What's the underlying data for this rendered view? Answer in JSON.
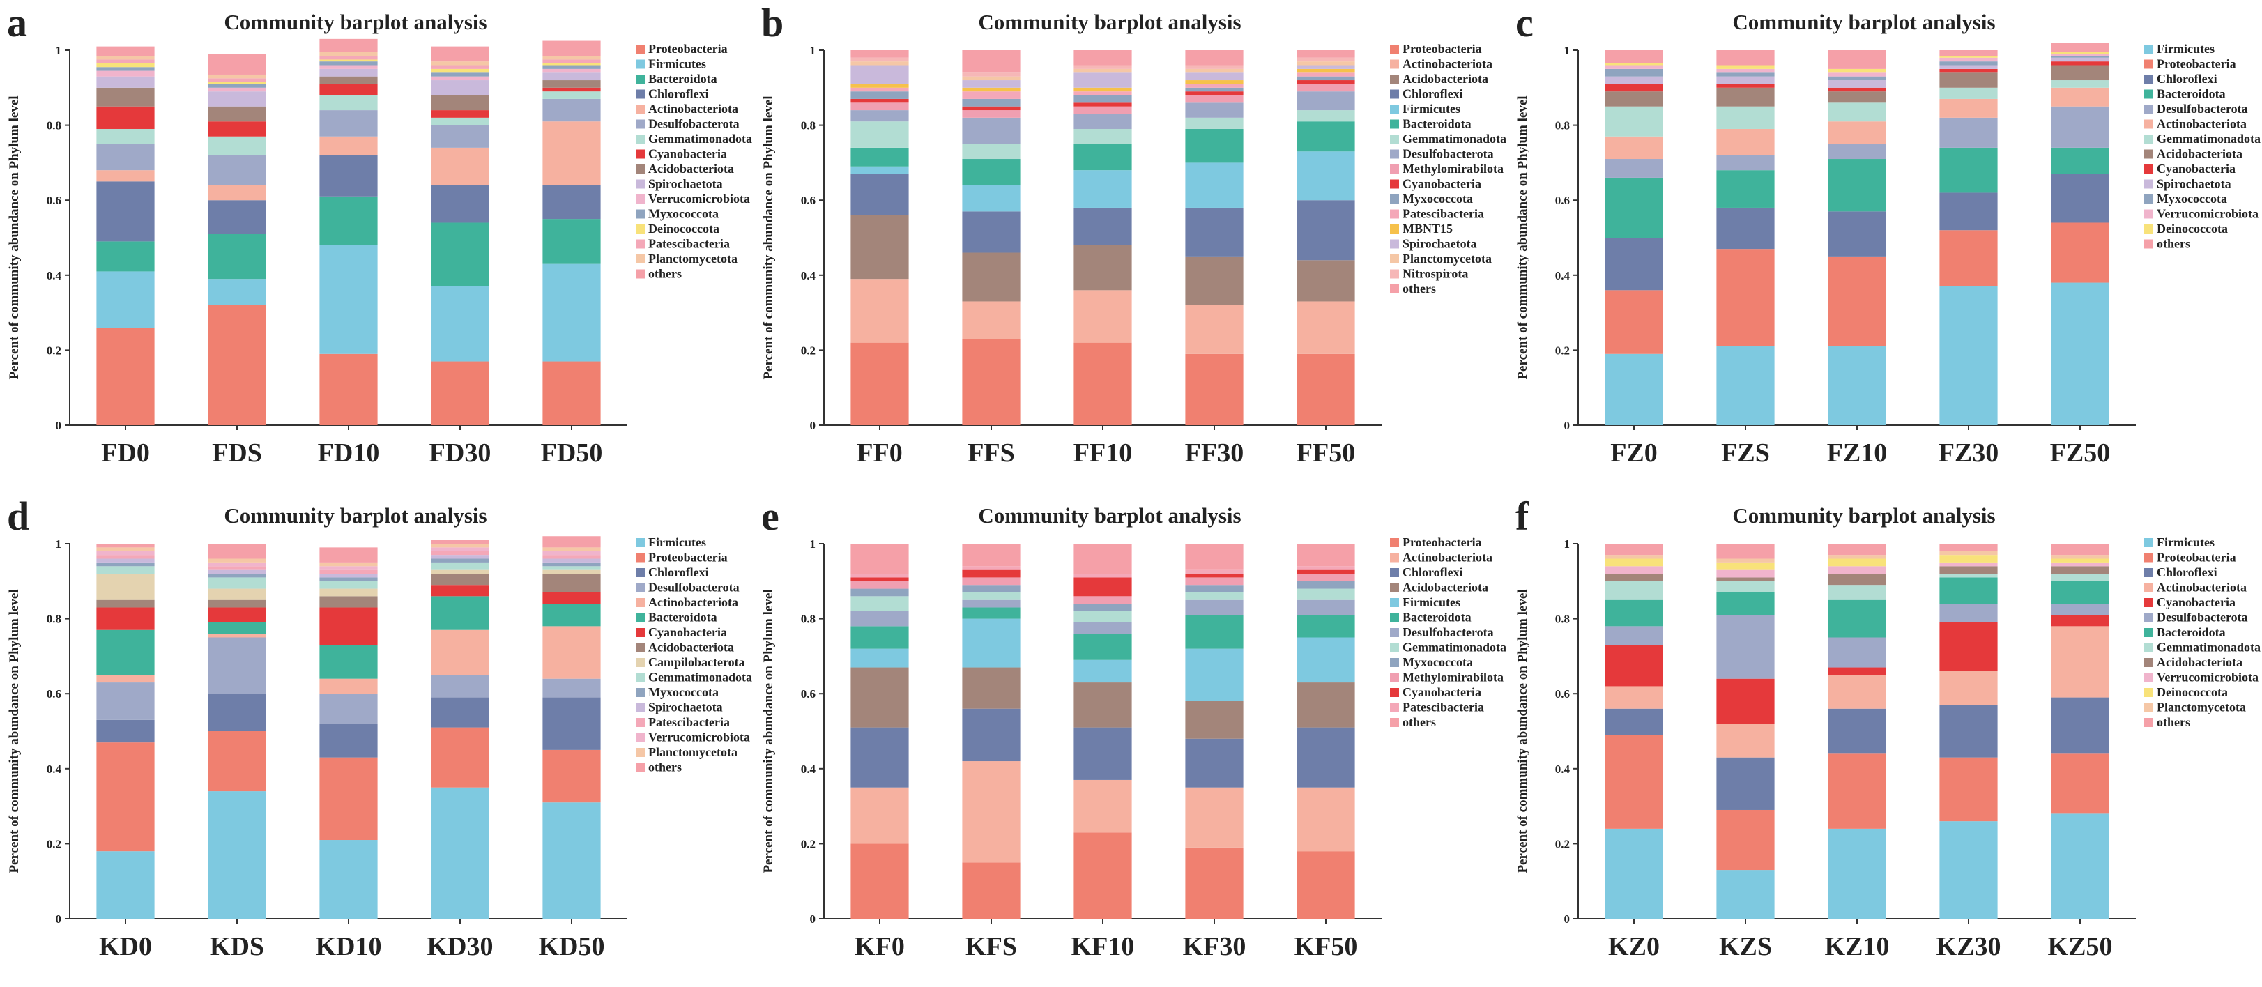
{
  "colors": {
    "Proteobacteria": "#f08070",
    "Firmicutes": "#7ec9e0",
    "Bacteroidota": "#3fb39b",
    "Chloroflexi": "#6e7ea9",
    "Actinobacteriota": "#f6b1a0",
    "Desulfobacterota": "#9fa9c8",
    "Gemmatimonadota": "#b2ddd3",
    "Cyanobacteria": "#e5393b",
    "Acidobacteriota": "#a3857a",
    "Spirochaetota": "#c9b9db",
    "Verrucomicrobiota": "#f0b4cc",
    "Myxococcota": "#8fa4bf",
    "Deinococcota": "#f8e27a",
    "Patescibacteria": "#f4a8b8",
    "Planctomycetota": "#f5c7a6",
    "others": "#f5a0a8",
    "MBNT15": "#f6c14b",
    "Methylomirabilota": "#f09fb1",
    "Nitrospirota": "#f6b7b7",
    "Campilobacterota": "#e4d3b0"
  },
  "chart_data": [
    {
      "panel_letter": "a",
      "type": "bar",
      "title": "Community barplot analysis",
      "ylabel": "Percent of community abundance on Phylum level",
      "categories": [
        "FD0",
        "FDS",
        "FD10",
        "FD30",
        "FD50"
      ],
      "ylim": [
        0,
        1
      ],
      "yticks": [
        "0",
        "0.2",
        "0.4",
        "0.6",
        "0.8",
        "1"
      ],
      "series": [
        {
          "name": "Proteobacteria",
          "values": [
            0.26,
            0.32,
            0.19,
            0.17,
            0.17
          ]
        },
        {
          "name": "Firmicutes",
          "values": [
            0.15,
            0.07,
            0.29,
            0.2,
            0.26
          ]
        },
        {
          "name": "Bacteroidota",
          "values": [
            0.08,
            0.12,
            0.13,
            0.17,
            0.12
          ]
        },
        {
          "name": "Chloroflexi",
          "values": [
            0.16,
            0.09,
            0.11,
            0.1,
            0.09
          ]
        },
        {
          "name": "Actinobacteriota",
          "values": [
            0.03,
            0.04,
            0.05,
            0.1,
            0.17
          ]
        },
        {
          "name": "Desulfobacterota",
          "values": [
            0.07,
            0.08,
            0.07,
            0.06,
            0.06
          ]
        },
        {
          "name": "Gemmatimonadota",
          "values": [
            0.04,
            0.05,
            0.04,
            0.02,
            0.02
          ]
        },
        {
          "name": "Cyanobacteria",
          "values": [
            0.06,
            0.04,
            0.03,
            0.02,
            0.01
          ]
        },
        {
          "name": "Acidobacteriota",
          "values": [
            0.05,
            0.04,
            0.02,
            0.04,
            0.02
          ]
        },
        {
          "name": "Spirochaetota",
          "values": [
            0.03,
            0.04,
            0.02,
            0.04,
            0.02
          ]
        },
        {
          "name": "Verrucomicrobiota",
          "values": [
            0.015,
            0.01,
            0.01,
            0.01,
            0.01
          ]
        },
        {
          "name": "Myxococcota",
          "values": [
            0.01,
            0.01,
            0.01,
            0.01,
            0.01
          ]
        },
        {
          "name": "Deinococcota",
          "values": [
            0.01,
            0.005,
            0.005,
            0.01,
            0.005
          ]
        },
        {
          "name": "Patescibacteria",
          "values": [
            0.01,
            0.01,
            0.01,
            0.01,
            0.01
          ]
        },
        {
          "name": "Planctomycetota",
          "values": [
            0.01,
            0.01,
            0.01,
            0.01,
            0.01
          ]
        },
        {
          "name": "others",
          "values": [
            0.025,
            0.055,
            0.035,
            0.04,
            0.04
          ]
        }
      ]
    },
    {
      "panel_letter": "b",
      "type": "bar",
      "title": "Community barplot analysis",
      "ylabel": "Percent of community abundance on Phylum level",
      "categories": [
        "FF0",
        "FFS",
        "FF10",
        "FF30",
        "FF50"
      ],
      "ylim": [
        0,
        1
      ],
      "yticks": [
        "0",
        "0.2",
        "0.4",
        "0.6",
        "0.8",
        "1"
      ],
      "series": [
        {
          "name": "Proteobacteria",
          "values": [
            0.22,
            0.23,
            0.22,
            0.19,
            0.19
          ]
        },
        {
          "name": "Actinobacteriota",
          "values": [
            0.17,
            0.1,
            0.14,
            0.13,
            0.14
          ]
        },
        {
          "name": "Acidobacteriota",
          "values": [
            0.17,
            0.13,
            0.12,
            0.13,
            0.11
          ]
        },
        {
          "name": "Chloroflexi",
          "values": [
            0.11,
            0.11,
            0.1,
            0.13,
            0.16
          ]
        },
        {
          "name": "Firmicutes",
          "values": [
            0.02,
            0.07,
            0.1,
            0.12,
            0.13
          ]
        },
        {
          "name": "Bacteroidota",
          "values": [
            0.05,
            0.07,
            0.07,
            0.09,
            0.08
          ]
        },
        {
          "name": "Gemmatimonadota",
          "values": [
            0.07,
            0.04,
            0.04,
            0.03,
            0.03
          ]
        },
        {
          "name": "Desulfobacterota",
          "values": [
            0.03,
            0.07,
            0.04,
            0.04,
            0.05
          ]
        },
        {
          "name": "Methylomirabilota",
          "values": [
            0.02,
            0.02,
            0.02,
            0.02,
            0.02
          ]
        },
        {
          "name": "Cyanobacteria",
          "values": [
            0.01,
            0.01,
            0.01,
            0.01,
            0.01
          ]
        },
        {
          "name": "Myxococcota",
          "values": [
            0.02,
            0.02,
            0.02,
            0.01,
            0.01
          ]
        },
        {
          "name": "Patescibacteria",
          "values": [
            0.01,
            0.02,
            0.01,
            0.01,
            0.01
          ]
        },
        {
          "name": "MBNT15",
          "values": [
            0.01,
            0.01,
            0.01,
            0.01,
            0.01
          ]
        },
        {
          "name": "Spirochaetota",
          "values": [
            0.05,
            0.02,
            0.04,
            0.02,
            0.01
          ]
        },
        {
          "name": "Planctomycetota",
          "values": [
            0.01,
            0.01,
            0.01,
            0.01,
            0.01
          ]
        },
        {
          "name": "Nitrospirota",
          "values": [
            0.01,
            0.01,
            0.01,
            0.01,
            0.01
          ]
        },
        {
          "name": "others",
          "values": [
            0.02,
            0.06,
            0.04,
            0.04,
            0.02
          ]
        }
      ]
    },
    {
      "panel_letter": "c",
      "type": "bar",
      "title": "Community barplot analysis",
      "ylabel": "Percent of community abundance on Phylum level",
      "categories": [
        "FZ0",
        "FZS",
        "FZ10",
        "FZ30",
        "FZ50"
      ],
      "ylim": [
        0,
        1
      ],
      "yticks": [
        "0",
        "0.2",
        "0.4",
        "0.6",
        "0.8",
        "1"
      ],
      "series": [
        {
          "name": "Firmicutes",
          "values": [
            0.19,
            0.21,
            0.21,
            0.37,
            0.38
          ]
        },
        {
          "name": "Proteobacteria",
          "values": [
            0.17,
            0.26,
            0.24,
            0.15,
            0.16
          ]
        },
        {
          "name": "Chloroflexi",
          "values": [
            0.14,
            0.11,
            0.12,
            0.1,
            0.13
          ]
        },
        {
          "name": "Bacteroidota",
          "values": [
            0.16,
            0.1,
            0.14,
            0.12,
            0.07
          ]
        },
        {
          "name": "Desulfobacterota",
          "values": [
            0.05,
            0.04,
            0.04,
            0.08,
            0.11
          ]
        },
        {
          "name": "Actinobacteriota",
          "values": [
            0.06,
            0.07,
            0.06,
            0.05,
            0.05
          ]
        },
        {
          "name": "Gemmatimonadota",
          "values": [
            0.08,
            0.06,
            0.05,
            0.03,
            0.02
          ]
        },
        {
          "name": "Acidobacteriota",
          "values": [
            0.04,
            0.05,
            0.03,
            0.04,
            0.04
          ]
        },
        {
          "name": "Cyanobacteria",
          "values": [
            0.02,
            0.01,
            0.01,
            0.01,
            0.01
          ]
        },
        {
          "name": "Spirochaetota",
          "values": [
            0.02,
            0.02,
            0.02,
            0.01,
            0.01
          ]
        },
        {
          "name": "Myxococcota",
          "values": [
            0.02,
            0.01,
            0.01,
            0.01,
            0.005
          ]
        },
        {
          "name": "Verrucomicrobiota",
          "values": [
            0.01,
            0.01,
            0.01,
            0.01,
            0.005
          ]
        },
        {
          "name": "Deinococcota",
          "values": [
            0.005,
            0.01,
            0.01,
            0.005,
            0.005
          ]
        },
        {
          "name": "others",
          "values": [
            0.035,
            0.04,
            0.05,
            0.015,
            0.025
          ]
        }
      ]
    },
    {
      "panel_letter": "d",
      "type": "bar",
      "title": "Community barplot analysis",
      "ylabel": "Percent of community abundance on Phylum level",
      "categories": [
        "KD0",
        "KDS",
        "KD10",
        "KD30",
        "KD50"
      ],
      "ylim": [
        0,
        1
      ],
      "yticks": [
        "0",
        "0.2",
        "0.4",
        "0.6",
        "0.8",
        "1"
      ],
      "series": [
        {
          "name": "Firmicutes",
          "values": [
            0.18,
            0.34,
            0.21,
            0.35,
            0.31
          ]
        },
        {
          "name": "Proteobacteria",
          "values": [
            0.29,
            0.16,
            0.22,
            0.16,
            0.14
          ]
        },
        {
          "name": "Chloroflexi",
          "values": [
            0.06,
            0.1,
            0.09,
            0.08,
            0.14
          ]
        },
        {
          "name": "Desulfobacterota",
          "values": [
            0.1,
            0.15,
            0.08,
            0.06,
            0.05
          ]
        },
        {
          "name": "Actinobacteriota",
          "values": [
            0.02,
            0.01,
            0.04,
            0.12,
            0.14
          ]
        },
        {
          "name": "Bacteroidota",
          "values": [
            0.12,
            0.03,
            0.09,
            0.09,
            0.06
          ]
        },
        {
          "name": "Cyanobacteria",
          "values": [
            0.06,
            0.04,
            0.1,
            0.03,
            0.03
          ]
        },
        {
          "name": "Acidobacteriota",
          "values": [
            0.02,
            0.02,
            0.03,
            0.03,
            0.05
          ]
        },
        {
          "name": "Campilobacterota",
          "values": [
            0.07,
            0.03,
            0.02,
            0.01,
            0.01
          ]
        },
        {
          "name": "Gemmatimonadota",
          "values": [
            0.02,
            0.03,
            0.02,
            0.02,
            0.01
          ]
        },
        {
          "name": "Myxococcota",
          "values": [
            0.01,
            0.01,
            0.01,
            0.01,
            0.01
          ]
        },
        {
          "name": "Spirochaetota",
          "values": [
            0.01,
            0.01,
            0.01,
            0.01,
            0.01
          ]
        },
        {
          "name": "Patescibacteria",
          "values": [
            0.01,
            0.01,
            0.01,
            0.01,
            0.01
          ]
        },
        {
          "name": "Verrucomicrobiota",
          "values": [
            0.01,
            0.01,
            0.01,
            0.01,
            0.01
          ]
        },
        {
          "name": "Planctomycetota",
          "values": [
            0.01,
            0.01,
            0.01,
            0.01,
            0.01
          ]
        },
        {
          "name": "others",
          "values": [
            0.01,
            0.04,
            0.04,
            0.01,
            0.03
          ]
        }
      ]
    },
    {
      "panel_letter": "e",
      "type": "bar",
      "title": "Community barplot analysis",
      "ylabel": "Percent of community abundance on Phylum level",
      "categories": [
        "KF0",
        "KFS",
        "KF10",
        "KF30",
        "KF50"
      ],
      "ylim": [
        0,
        1
      ],
      "yticks": [
        "0",
        "0.2",
        "0.4",
        "0.6",
        "0.8",
        "1"
      ],
      "series": [
        {
          "name": "Proteobacteria",
          "values": [
            0.2,
            0.15,
            0.23,
            0.19,
            0.18
          ]
        },
        {
          "name": "Actinobacteriota",
          "values": [
            0.15,
            0.27,
            0.14,
            0.16,
            0.17
          ]
        },
        {
          "name": "Chloroflexi",
          "values": [
            0.16,
            0.14,
            0.14,
            0.13,
            0.16
          ]
        },
        {
          "name": "Acidobacteriota",
          "values": [
            0.16,
            0.11,
            0.12,
            0.1,
            0.12
          ]
        },
        {
          "name": "Firmicutes",
          "values": [
            0.05,
            0.13,
            0.06,
            0.14,
            0.12
          ]
        },
        {
          "name": "Bacteroidota",
          "values": [
            0.06,
            0.03,
            0.07,
            0.09,
            0.06
          ]
        },
        {
          "name": "Desulfobacterota",
          "values": [
            0.04,
            0.02,
            0.03,
            0.04,
            0.04
          ]
        },
        {
          "name": "Gemmatimonadota",
          "values": [
            0.04,
            0.02,
            0.03,
            0.02,
            0.03
          ]
        },
        {
          "name": "Myxococcota",
          "values": [
            0.02,
            0.02,
            0.02,
            0.02,
            0.02
          ]
        },
        {
          "name": "Methylomirabilota",
          "values": [
            0.02,
            0.02,
            0.02,
            0.02,
            0.02
          ]
        },
        {
          "name": "Cyanobacteria",
          "values": [
            0.01,
            0.02,
            0.05,
            0.01,
            0.01
          ]
        },
        {
          "name": "Patescibacteria",
          "values": [
            0.01,
            0.01,
            0.01,
            0.01,
            0.01
          ]
        },
        {
          "name": "others",
          "values": [
            0.08,
            0.06,
            0.08,
            0.07,
            0.06
          ]
        }
      ]
    },
    {
      "panel_letter": "f",
      "type": "bar",
      "title": "Community barplot analysis",
      "ylabel": "Percent of community abundance on Phylum level",
      "categories": [
        "KZ0",
        "KZS",
        "KZ10",
        "KZ30",
        "KZ50"
      ],
      "ylim": [
        0,
        1
      ],
      "yticks": [
        "0",
        "0.2",
        "0.4",
        "0.6",
        "0.8",
        "1"
      ],
      "series": [
        {
          "name": "Firmicutes",
          "values": [
            0.24,
            0.13,
            0.24,
            0.26,
            0.28
          ]
        },
        {
          "name": "Proteobacteria",
          "values": [
            0.25,
            0.16,
            0.2,
            0.17,
            0.16
          ]
        },
        {
          "name": "Chloroflexi",
          "values": [
            0.07,
            0.14,
            0.12,
            0.14,
            0.15
          ]
        },
        {
          "name": "Actinobacteriota",
          "values": [
            0.06,
            0.09,
            0.09,
            0.09,
            0.19
          ]
        },
        {
          "name": "Cyanobacteria",
          "values": [
            0.11,
            0.12,
            0.02,
            0.13,
            0.03
          ]
        },
        {
          "name": "Desulfobacterota",
          "values": [
            0.05,
            0.17,
            0.08,
            0.05,
            0.03
          ]
        },
        {
          "name": "Bacteroidota",
          "values": [
            0.07,
            0.06,
            0.1,
            0.07,
            0.06
          ]
        },
        {
          "name": "Gemmatimonadota",
          "values": [
            0.05,
            0.03,
            0.04,
            0.01,
            0.02
          ]
        },
        {
          "name": "Acidobacteriota",
          "values": [
            0.02,
            0.01,
            0.03,
            0.02,
            0.02
          ]
        },
        {
          "name": "Verrucomicrobiota",
          "values": [
            0.02,
            0.02,
            0.02,
            0.01,
            0.01
          ]
        },
        {
          "name": "Deinococcota",
          "values": [
            0.02,
            0.02,
            0.02,
            0.02,
            0.01
          ]
        },
        {
          "name": "Planctomycetota",
          "values": [
            0.01,
            0.01,
            0.01,
            0.01,
            0.01
          ]
        },
        {
          "name": "others",
          "values": [
            0.03,
            0.04,
            0.03,
            0.02,
            0.03
          ]
        }
      ]
    }
  ]
}
